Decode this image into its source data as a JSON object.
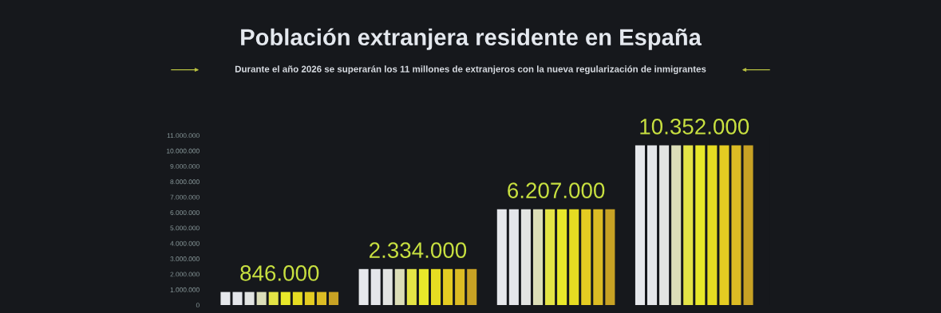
{
  "chart_data": {
    "type": "bar",
    "title": "Población extranjera residente en España",
    "subtitle": "Durante el año 2026 se superarán los 11 millones de extranjeros con la nueva regularización de inmigrantes",
    "categories": [
      null,
      null,
      null,
      null
    ],
    "series": [
      {
        "color": "#e6e8ec",
        "values": [
          846000,
          2334000,
          6207000,
          10352000
        ]
      },
      {
        "color": "#e4e6ea",
        "values": [
          846000,
          2334000,
          6207000,
          10352000
        ]
      },
      {
        "color": "#e2e4e2",
        "values": [
          846000,
          2334000,
          6207000,
          10352000
        ]
      },
      {
        "color": "#dcdeb8",
        "values": [
          846000,
          2334000,
          6207000,
          10352000
        ]
      },
      {
        "color": "#e4e446",
        "values": [
          846000,
          2334000,
          6207000,
          10352000
        ]
      },
      {
        "color": "#e8e82a",
        "values": [
          846000,
          2334000,
          6207000,
          10352000
        ]
      },
      {
        "color": "#e6dc22",
        "values": [
          846000,
          2334000,
          6207000,
          10352000
        ]
      },
      {
        "color": "#e4cc22",
        "values": [
          846000,
          2334000,
          6207000,
          10352000
        ]
      },
      {
        "color": "#dcbc24",
        "values": [
          846000,
          2334000,
          6207000,
          10352000
        ]
      },
      {
        "color": "#c8a224",
        "values": [
          846000,
          2334000,
          6207000,
          10352000
        ]
      }
    ],
    "value_labels": [
      "846.000",
      "2.334.000",
      "6.207.000",
      "10.352.000"
    ],
    "ylim": [
      0,
      11000000
    ],
    "yticks": [
      {
        "value": 0,
        "label": "0"
      },
      {
        "value": 1000000,
        "label": "1.000.000"
      },
      {
        "value": 2000000,
        "label": "2.000.000"
      },
      {
        "value": 3000000,
        "label": "3.000.000"
      },
      {
        "value": 4000000,
        "label": "4.000.000"
      },
      {
        "value": 5000000,
        "label": "5.000.000"
      },
      {
        "value": 6000000,
        "label": "6.000.000"
      },
      {
        "value": 7000000,
        "label": "7.000.000"
      },
      {
        "value": 8000000,
        "label": "8.000.000"
      },
      {
        "value": 9000000,
        "label": "9.000.000"
      },
      {
        "value": 10000000,
        "label": "10.000.000"
      },
      {
        "value": 11000000,
        "label": "11.000.000"
      }
    ],
    "grid": false,
    "legend": false
  }
}
